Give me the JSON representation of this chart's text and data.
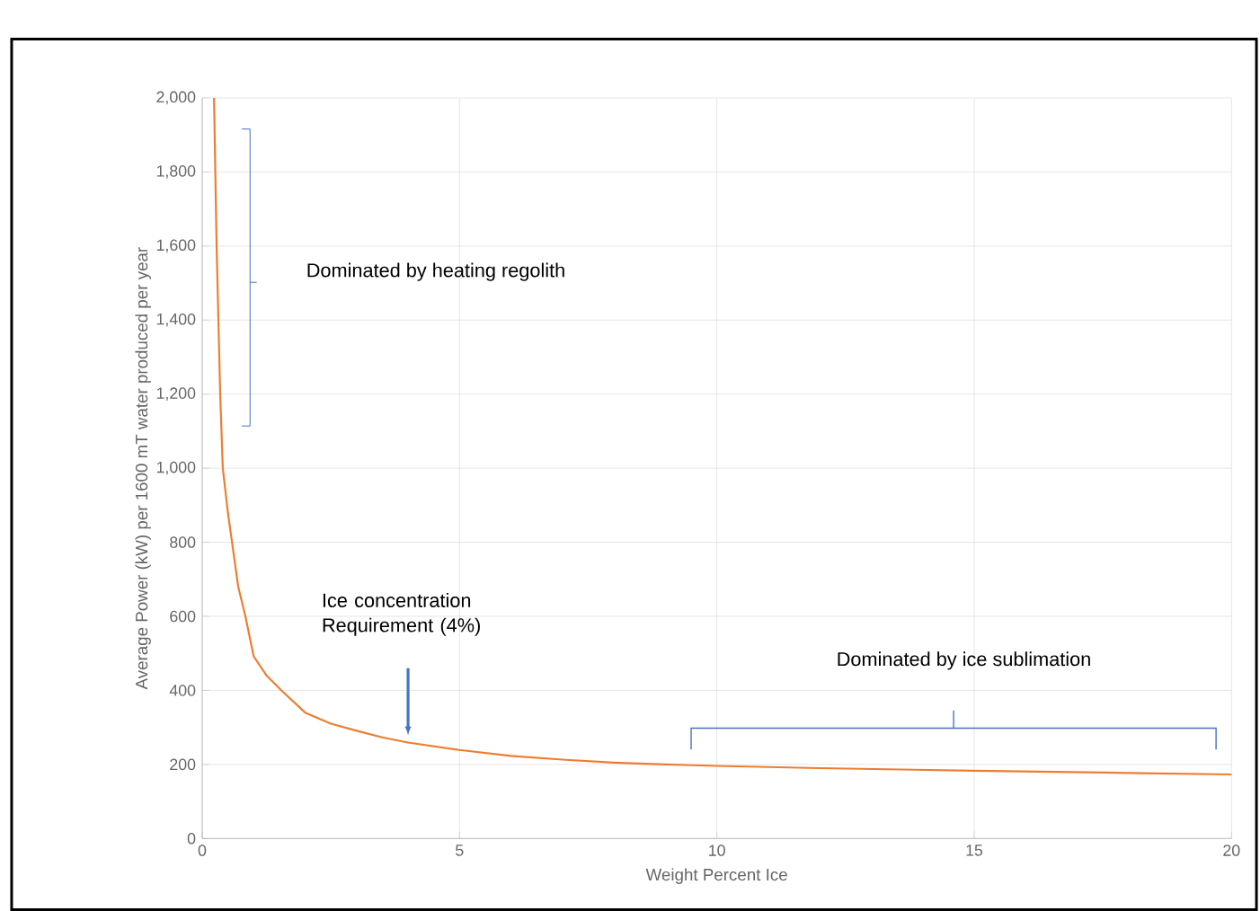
{
  "chart_data": {
    "type": "line",
    "xlabel": "Weight Percent Ice",
    "ylabel": "Average Power (kW) per 1600 mT water produced per year",
    "x": [
      0.23,
      0.28,
      0.35,
      0.4,
      0.5,
      0.58,
      0.7,
      0.84,
      1.0,
      1.25,
      1.54,
      2,
      2.5,
      3,
      3.5,
      4,
      5,
      6,
      7,
      8,
      9,
      10,
      12,
      15,
      17.5,
      20
    ],
    "series": [
      {
        "color": "#ed7d31",
        "values": [
          2000,
          1600,
          1200,
          1000,
          880,
          800,
          680,
          600,
          492,
          440,
          400,
          340,
          310,
          291,
          273,
          259,
          239,
          223,
          213,
          205,
          200,
          196,
          190,
          183,
          178,
          173
        ]
      }
    ],
    "xlim": [
      0,
      20
    ],
    "xticks": [
      0,
      5,
      10,
      15,
      20
    ],
    "ylim": [
      0,
      2000
    ],
    "yticks": [
      {
        "value": 0,
        "label": "0"
      },
      {
        "value": 200,
        "label": "200"
      },
      {
        "value": 400,
        "label": "400"
      },
      {
        "value": 600,
        "label": "600"
      },
      {
        "value": 800,
        "label": "800"
      },
      {
        "value": 1000,
        "label": "1,000"
      },
      {
        "value": 1200,
        "label": "1,200"
      },
      {
        "value": 1400,
        "label": "1,400"
      },
      {
        "value": 1600,
        "label": "1,600"
      },
      {
        "value": 1800,
        "label": "1,800"
      },
      {
        "value": 2000,
        "label": "2,000"
      }
    ],
    "grid": true,
    "marker": "none",
    "line_style": "solid",
    "annotations": [
      "Dominated by heating regolith",
      "Ice concentration Requirement (4%)",
      "Dominated by ice sublimation"
    ]
  }
}
